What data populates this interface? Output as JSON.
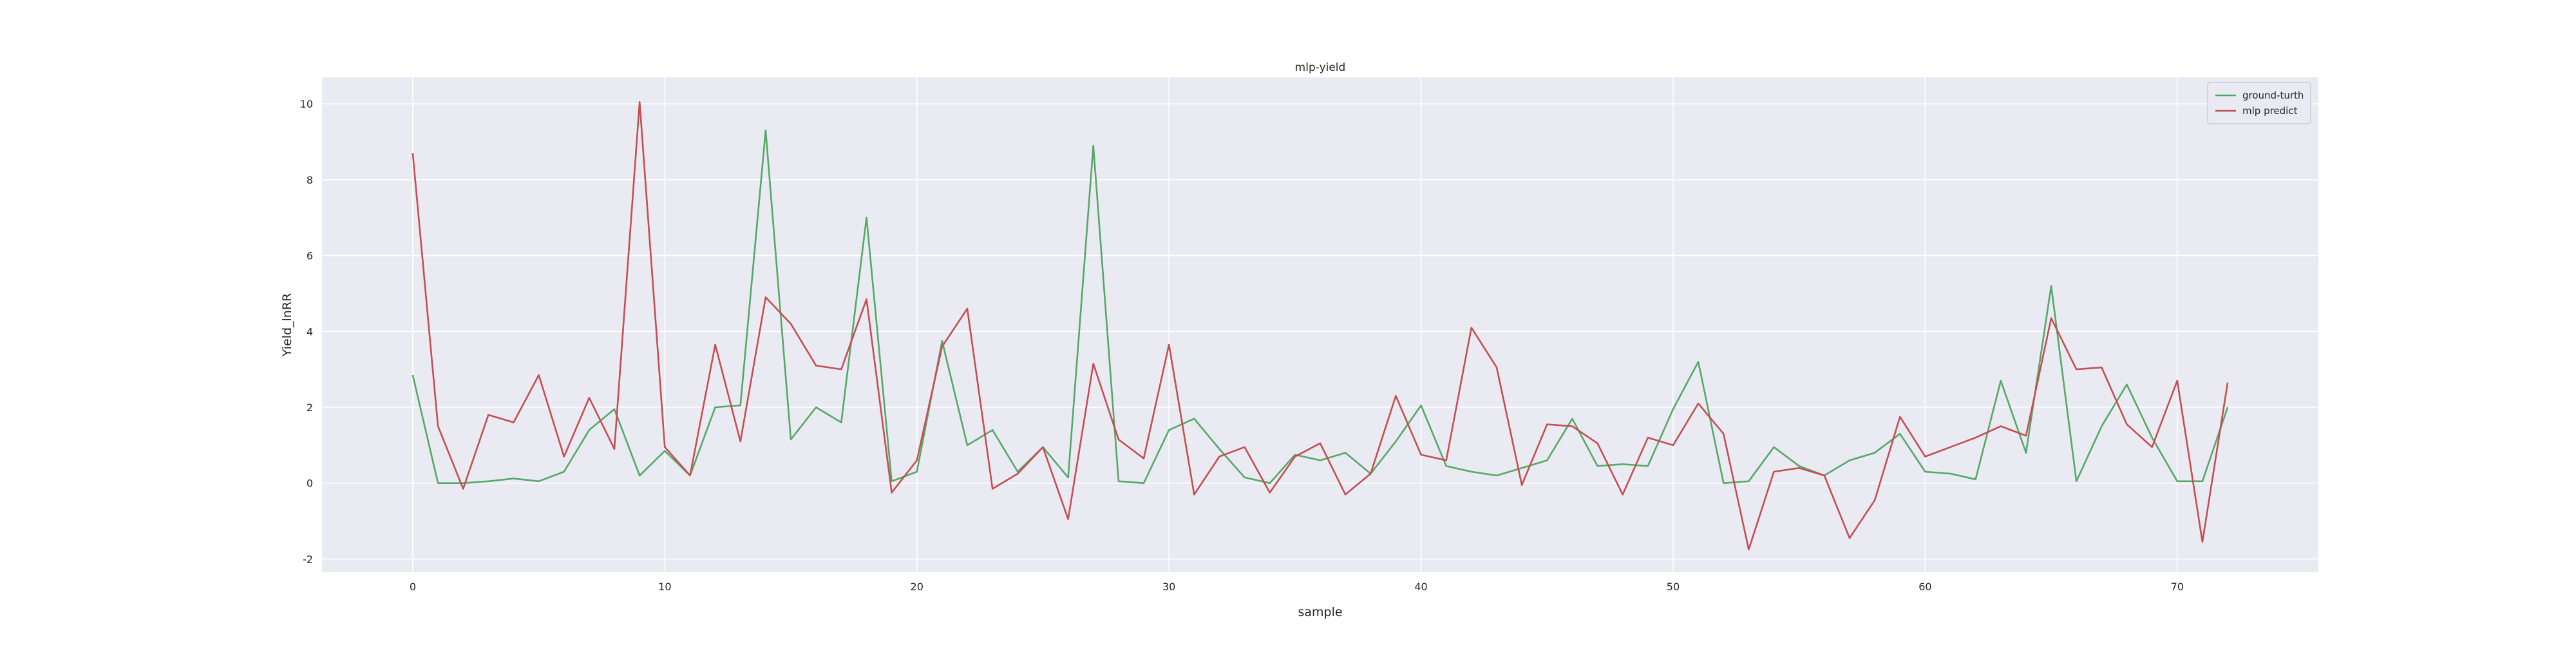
{
  "chart_data": {
    "type": "line",
    "title": "mlp-yield",
    "xlabel": "sample",
    "ylabel": "Yield_lnRR",
    "xlim": [
      -3.6,
      75.6
    ],
    "ylim": [
      -2.35,
      10.7
    ],
    "xticks": [
      0,
      10,
      20,
      30,
      40,
      50,
      60,
      70
    ],
    "yticks": [
      -2,
      0,
      2,
      4,
      6,
      8,
      10
    ],
    "grid": true,
    "background": "#eaeaf2",
    "legend_position": "top-right",
    "series": [
      {
        "name": "ground-turth",
        "color": "#55a868",
        "x": [
          0,
          1,
          2,
          3,
          4,
          5,
          6,
          7,
          8,
          9,
          10,
          11,
          12,
          13,
          14,
          15,
          16,
          17,
          18,
          19,
          20,
          21,
          22,
          23,
          24,
          25,
          26,
          27,
          28,
          29,
          30,
          31,
          32,
          33,
          34,
          35,
          36,
          37,
          38,
          39,
          40,
          41,
          42,
          43,
          44,
          45,
          46,
          47,
          48,
          49,
          50,
          51,
          52,
          53,
          54,
          55,
          56,
          57,
          58,
          59,
          60,
          61,
          62,
          63,
          64,
          65,
          66,
          67,
          68,
          69,
          70,
          71,
          72
        ],
        "values": [
          2.85,
          0.0,
          0.0,
          0.05,
          0.12,
          0.05,
          0.3,
          1.4,
          1.95,
          0.2,
          0.85,
          0.2,
          2.0,
          2.05,
          9.3,
          1.15,
          2.0,
          1.6,
          7.0,
          0.05,
          0.3,
          3.75,
          1.0,
          1.4,
          0.3,
          0.95,
          0.15,
          8.9,
          0.05,
          0.0,
          1.4,
          1.7,
          0.9,
          0.15,
          0.0,
          0.75,
          0.6,
          0.8,
          0.25,
          1.1,
          2.05,
          0.45,
          0.3,
          0.2,
          0.4,
          0.6,
          1.7,
          0.45,
          0.5,
          0.45,
          1.95,
          3.2,
          0.0,
          0.05,
          0.95,
          0.45,
          0.2,
          0.6,
          0.8,
          1.3,
          0.3,
          0.25,
          0.1,
          2.7,
          0.8,
          5.2,
          0.05,
          1.5,
          2.6,
          1.2,
          0.05,
          0.05,
          2.0
        ]
      },
      {
        "name": "mlp predict",
        "color": "#c44e52",
        "x": [
          0,
          1,
          2,
          3,
          4,
          5,
          6,
          7,
          8,
          9,
          10,
          11,
          12,
          13,
          14,
          15,
          16,
          17,
          18,
          19,
          20,
          21,
          22,
          23,
          24,
          25,
          26,
          27,
          28,
          29,
          30,
          31,
          32,
          33,
          34,
          35,
          36,
          37,
          38,
          39,
          40,
          41,
          42,
          43,
          44,
          45,
          46,
          47,
          48,
          49,
          50,
          51,
          52,
          53,
          54,
          55,
          56,
          57,
          58,
          59,
          60,
          61,
          62,
          63,
          64,
          65,
          66,
          67,
          68,
          69,
          70,
          71,
          72
        ],
        "values": [
          8.7,
          1.5,
          -0.15,
          1.8,
          1.6,
          2.85,
          0.7,
          2.25,
          0.9,
          10.05,
          0.95,
          0.2,
          3.65,
          1.1,
          4.9,
          4.2,
          3.1,
          3.0,
          4.85,
          -0.25,
          0.6,
          3.6,
          4.6,
          -0.15,
          0.25,
          0.95,
          -0.95,
          3.15,
          1.15,
          0.65,
          3.65,
          -0.3,
          0.7,
          0.95,
          -0.25,
          0.7,
          1.05,
          -0.3,
          0.25,
          2.3,
          0.75,
          0.6,
          4.1,
          3.05,
          -0.05,
          1.55,
          1.5,
          1.05,
          -0.3,
          1.2,
          1.0,
          2.1,
          1.3,
          -1.75,
          0.3,
          0.4,
          0.2,
          -1.45,
          -0.45,
          1.75,
          0.7,
          0.95,
          1.2,
          1.5,
          1.25,
          4.35,
          3.0,
          3.05,
          1.55,
          0.95,
          2.7,
          -1.55,
          2.65
        ]
      }
    ]
  }
}
